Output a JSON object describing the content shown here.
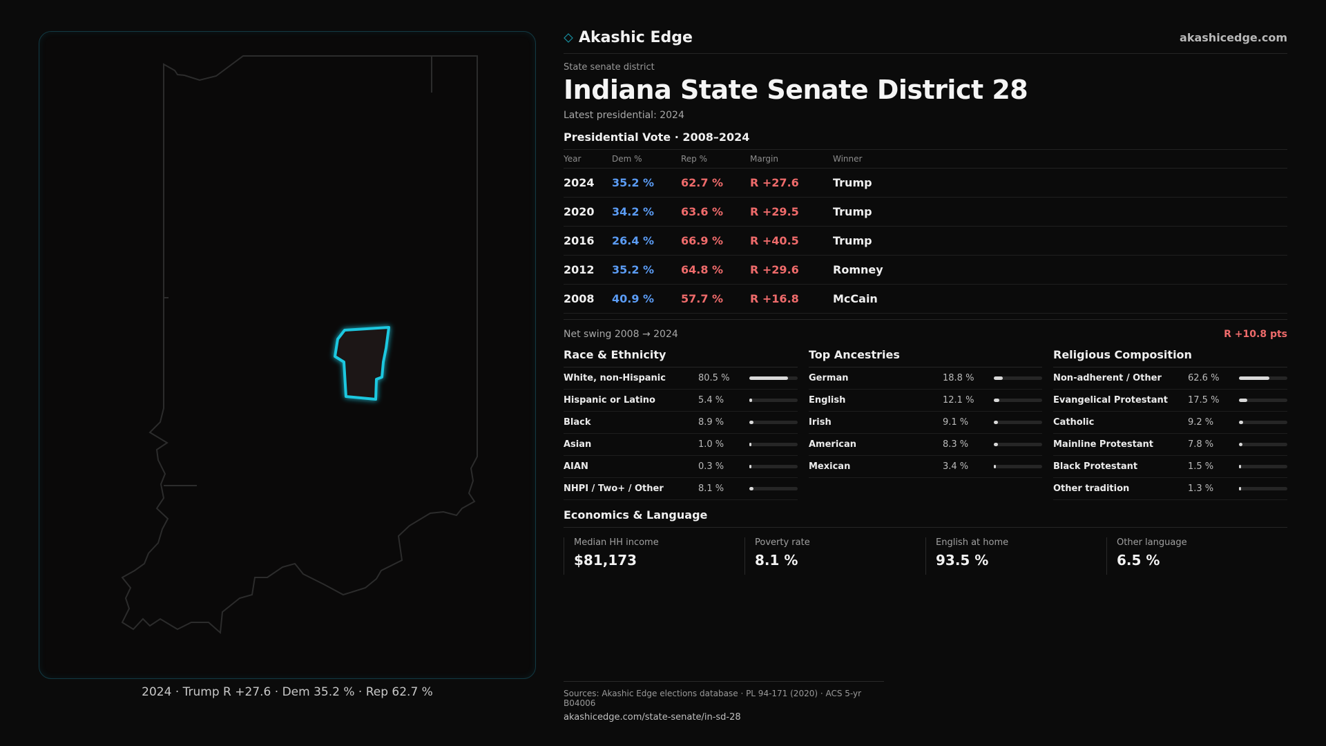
{
  "brand": {
    "name": "Akashic Edge",
    "url": "akashicedge.com",
    "icon": "diamond-icon",
    "accent": "#1ec8e0"
  },
  "header": {
    "kind": "State senate district",
    "title": "Indiana State Senate District 28",
    "latest": "Latest presidential: 2024"
  },
  "votes": {
    "title": "Presidential Vote · 2008–2024",
    "columns": [
      "Year",
      "Dem %",
      "Rep %",
      "Margin",
      "Winner"
    ],
    "rows": [
      {
        "year": "2024",
        "dem": "35.2 %",
        "rep": "62.7 %",
        "margin": "R +27.6",
        "winner": "Trump"
      },
      {
        "year": "2020",
        "dem": "34.2 %",
        "rep": "63.6 %",
        "margin": "R +29.5",
        "winner": "Trump"
      },
      {
        "year": "2016",
        "dem": "26.4 %",
        "rep": "66.9 %",
        "margin": "R +40.5",
        "winner": "Trump"
      },
      {
        "year": "2012",
        "dem": "35.2 %",
        "rep": "64.8 %",
        "margin": "R +29.6",
        "winner": "Romney"
      },
      {
        "year": "2008",
        "dem": "40.9 %",
        "rep": "57.7 %",
        "margin": "R +16.8",
        "winner": "McCain"
      }
    ],
    "colors": {
      "dem": "#5b9cf5",
      "rep": "#ef6b6b"
    }
  },
  "swing": {
    "label": "Net swing 2008 → 2024",
    "value": "R +10.8 pts"
  },
  "race": {
    "title": "Race & Ethnicity",
    "rows": [
      {
        "label": "White, non-Hispanic",
        "pct": "80.5 %",
        "value": 80.5
      },
      {
        "label": "Hispanic or Latino",
        "pct": "5.4 %",
        "value": 5.4
      },
      {
        "label": "Black",
        "pct": "8.9 %",
        "value": 8.9
      },
      {
        "label": "Asian",
        "pct": "1.0 %",
        "value": 1.0
      },
      {
        "label": "AIAN",
        "pct": "0.3 %",
        "value": 0.3
      },
      {
        "label": "NHPI / Two+ / Other",
        "pct": "8.1 %",
        "value": 8.1
      }
    ]
  },
  "ancestry": {
    "title": "Top Ancestries",
    "rows": [
      {
        "label": "German",
        "pct": "18.8 %",
        "value": 18.8
      },
      {
        "label": "English",
        "pct": "12.1 %",
        "value": 12.1
      },
      {
        "label": "Irish",
        "pct": "9.1 %",
        "value": 9.1
      },
      {
        "label": "American",
        "pct": "8.3 %",
        "value": 8.3
      },
      {
        "label": "Mexican",
        "pct": "3.4 %",
        "value": 3.4
      }
    ]
  },
  "religion": {
    "title": "Religious Composition",
    "rows": [
      {
        "label": "Non-adherent / Other",
        "pct": "62.6 %",
        "value": 62.6
      },
      {
        "label": "Evangelical Protestant",
        "pct": "17.5 %",
        "value": 17.5
      },
      {
        "label": "Catholic",
        "pct": "9.2 %",
        "value": 9.2
      },
      {
        "label": "Mainline Protestant",
        "pct": "7.8 %",
        "value": 7.8
      },
      {
        "label": "Black Protestant",
        "pct": "1.5 %",
        "value": 1.5
      },
      {
        "label": "Other tradition",
        "pct": "1.3 %",
        "value": 1.3
      }
    ]
  },
  "economics": {
    "title": "Economics & Language",
    "cards": [
      {
        "label": "Median HH income",
        "value": "$81,173"
      },
      {
        "label": "Poverty rate",
        "value": "8.1 %"
      },
      {
        "label": "English at home",
        "value": "93.5 %"
      },
      {
        "label": "Other language",
        "value": "6.5 %"
      }
    ]
  },
  "map": {
    "caption": "2024 · Trump R +27.6 · Dem 35.2 % · Rep 62.7 %",
    "district_color": "#1ec8e0"
  },
  "sources": {
    "text": "Sources: Akashic Edge elections database · PL 94-171 (2020) · ACS 5-yr B04006",
    "url": "akashicedge.com/state-senate/in-sd-28"
  }
}
